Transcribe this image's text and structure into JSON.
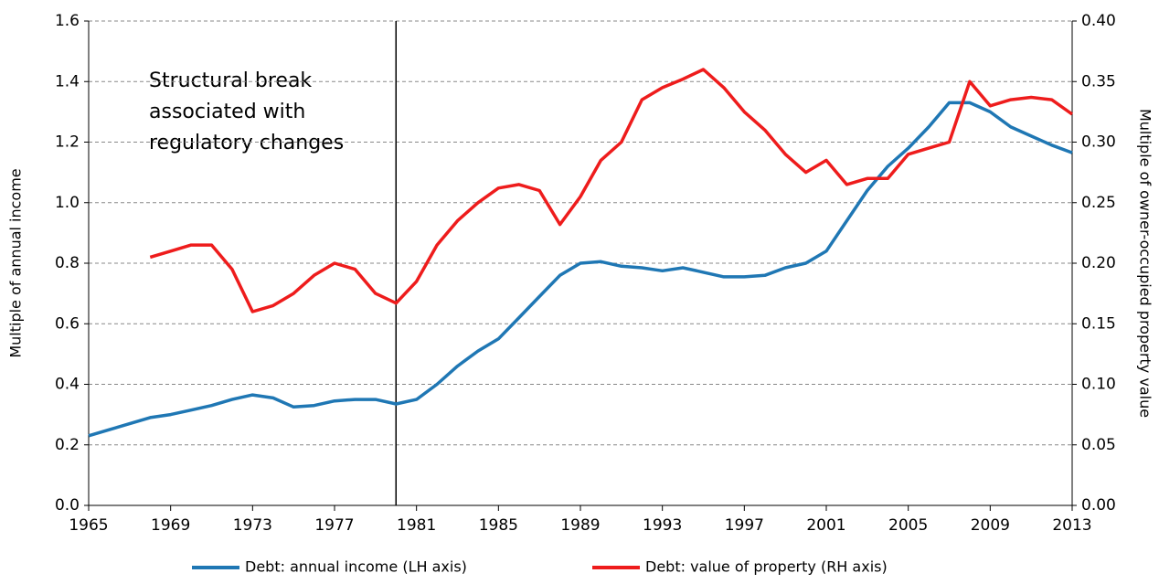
{
  "chart_data": {
    "type": "line",
    "annotation": [
      "Structural break",
      "associated with",
      "regulatory changes"
    ],
    "vline": 1980,
    "ylabel": "Multiple of annual income",
    "y2label": "Multiple of owner-occupied property value",
    "x": [
      1965,
      1966,
      1967,
      1968,
      1969,
      1970,
      1971,
      1972,
      1973,
      1974,
      1975,
      1976,
      1977,
      1978,
      1979,
      1980,
      1981,
      1982,
      1983,
      1984,
      1985,
      1986,
      1987,
      1988,
      1989,
      1990,
      1991,
      1992,
      1993,
      1994,
      1995,
      1996,
      1997,
      1998,
      1999,
      2000,
      2001,
      2002,
      2003,
      2004,
      2005,
      2006,
      2007,
      2008,
      2009,
      2010,
      2011,
      2012,
      2013
    ],
    "series": [
      {
        "name": "Debt: annual income (LH axis)",
        "color": "#1f77b4",
        "values": [
          0.23,
          0.25,
          0.27,
          0.29,
          0.3,
          0.315,
          0.33,
          0.35,
          0.365,
          0.355,
          0.325,
          0.33,
          0.345,
          0.35,
          0.35,
          0.335,
          0.35,
          0.4,
          0.46,
          0.51,
          0.55,
          0.62,
          0.69,
          0.76,
          0.8,
          0.805,
          0.79,
          0.785,
          0.775,
          0.785,
          0.77,
          0.755,
          0.755,
          0.76,
          0.785,
          0.8,
          0.84,
          0.94,
          1.04,
          1.12,
          1.18,
          1.25,
          1.33,
          1.33,
          1.3,
          1.25,
          1.22,
          1.19,
          1.165
        ]
      },
      {
        "name": "Debt: value of property (RH axis)",
        "color": "#ee1c1c",
        "axis": "y2",
        "values": [
          null,
          null,
          null,
          0.205,
          0.21,
          0.215,
          0.215,
          0.195,
          0.16,
          0.165,
          0.175,
          0.19,
          0.2,
          0.195,
          0.175,
          0.167,
          0.185,
          0.215,
          0.235,
          0.25,
          0.262,
          0.265,
          0.26,
          0.232,
          0.255,
          0.285,
          0.3,
          0.335,
          0.345,
          0.352,
          0.36,
          0.345,
          0.325,
          0.31,
          0.29,
          0.275,
          0.285,
          0.265,
          0.27,
          0.27,
          0.29,
          0.295,
          0.3,
          0.35,
          0.33,
          0.335,
          0.337,
          0.335,
          0.323
        ]
      }
    ],
    "xlim": [
      1965,
      2013
    ],
    "xticks": [
      1965,
      1969,
      1973,
      1977,
      1981,
      1985,
      1989,
      1993,
      1997,
      2001,
      2005,
      2009,
      2013
    ],
    "ylim": [
      0,
      1.6
    ],
    "yticks": [
      {
        "value": 0,
        "label": "0.0"
      },
      {
        "value": 0.2,
        "label": "0.2"
      },
      {
        "value": 0.4,
        "label": "0.4"
      },
      {
        "value": 0.6,
        "label": "0.6"
      },
      {
        "value": 0.8,
        "label": "0.8"
      },
      {
        "value": 1,
        "label": "1.0"
      },
      {
        "value": 1.2,
        "label": "1.2"
      },
      {
        "value": 1.4,
        "label": "1.4"
      },
      {
        "value": 1.6,
        "label": "1.6"
      }
    ],
    "y2lim": [
      0,
      0.4
    ],
    "y2ticks": [
      {
        "value": 0,
        "label": "0.00"
      },
      {
        "value": 0.05,
        "label": "0.05"
      },
      {
        "value": 0.1,
        "label": "0.10"
      },
      {
        "value": 0.15,
        "label": "0.15"
      },
      {
        "value": 0.2,
        "label": "0.20"
      },
      {
        "value": 0.25,
        "label": "0.25"
      },
      {
        "value": 0.3,
        "label": "0.30"
      },
      {
        "value": 0.35,
        "label": "0.35"
      },
      {
        "value": 0.4,
        "label": "0.40"
      }
    ],
    "grid": true,
    "legend": "bottom"
  }
}
